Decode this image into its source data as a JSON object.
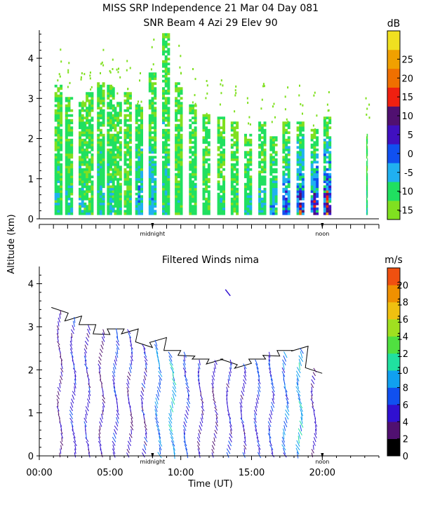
{
  "title_line1": "MISS SRP Independence  21 Mar 04 Day 081",
  "title_line2": "SNR Beam 4 Azi  29 Elev 90",
  "shared_ylabel": "Altitude (km)",
  "chart_data": [
    {
      "type": "heatmap",
      "name": "snr",
      "title": "SNR Beam 4 Azi  29 Elev 90",
      "ylabel": "Altitude (km)",
      "xlim": [
        0,
        24
      ],
      "ylim": [
        0,
        4.7
      ],
      "y_ticks": [
        0,
        1,
        2,
        3,
        4
      ],
      "markers": [
        {
          "label": "midnight",
          "x": 8
        },
        {
          "label": "noon",
          "x": 20
        }
      ],
      "colorbar": {
        "unit": "dB",
        "ticks": [
          -15,
          -10,
          -5,
          0,
          5,
          10,
          15,
          20,
          25
        ],
        "min": -17.5,
        "max": 32.5,
        "colors": [
          "#80e020",
          "#20e060",
          "#20b0f0",
          "#1050f0",
          "#4010c0",
          "#501070",
          "#f02010",
          "#f07000",
          "#f0a000",
          "#f0e020"
        ]
      },
      "columns": [
        {
          "x": 1.35,
          "top": 3.3,
          "peak": -8
        },
        {
          "x": 2.1,
          "top": 3.0,
          "peak": -8
        },
        {
          "x": 3.05,
          "top": 2.9,
          "peak": -8
        },
        {
          "x": 3.55,
          "top": 3.1,
          "peak": -10
        },
        {
          "x": 4.35,
          "top": 3.4,
          "peak": -8
        },
        {
          "x": 5.05,
          "top": 3.3,
          "peak": -8
        },
        {
          "x": 5.55,
          "top": 2.9,
          "peak": -10
        },
        {
          "x": 6.25,
          "top": 3.1,
          "peak": -10
        },
        {
          "x": 7.05,
          "top": 2.8,
          "peak": -5
        },
        {
          "x": 8.0,
          "top": 3.6,
          "peak": -5
        },
        {
          "x": 8.95,
          "top": 4.6,
          "peak": -8
        },
        {
          "x": 9.85,
          "top": 3.4,
          "peak": -10
        },
        {
          "x": 10.85,
          "top": 2.8,
          "peak": -10
        },
        {
          "x": 11.8,
          "top": 2.6,
          "peak": -10
        },
        {
          "x": 12.85,
          "top": 2.5,
          "peak": -10
        },
        {
          "x": 13.8,
          "top": 2.4,
          "peak": -10
        },
        {
          "x": 14.75,
          "top": 2.1,
          "peak": -8
        },
        {
          "x": 15.75,
          "top": 2.4,
          "peak": -8
        },
        {
          "x": 16.55,
          "top": 2.0,
          "peak": -5
        },
        {
          "x": 17.45,
          "top": 2.4,
          "peak": 0
        },
        {
          "x": 18.45,
          "top": 2.4,
          "peak": 5
        },
        {
          "x": 19.45,
          "top": 2.2,
          "peak": 5
        },
        {
          "x": 20.35,
          "top": 2.5,
          "peak": 8
        },
        {
          "x": 23.15,
          "top": 2.1,
          "peak": -8
        }
      ]
    },
    {
      "type": "quiver",
      "name": "winds",
      "title": "Filtered Winds nima",
      "xlabel": "Time (UT)",
      "ylabel": "Altitude (km)",
      "xlim": [
        0,
        24
      ],
      "ylim": [
        0,
        4.4
      ],
      "x_ticks": [
        0,
        5,
        10,
        15,
        20
      ],
      "x_tick_labels": [
        "00:00",
        "05:00",
        "10:00",
        "15:00",
        "20:00"
      ],
      "y_ticks": [
        0,
        1,
        2,
        3,
        4
      ],
      "markers": [
        {
          "label": "midnight",
          "x": 8
        },
        {
          "label": "noon",
          "x": 20
        }
      ],
      "colorbar": {
        "unit": "m/s",
        "ticks": [
          0,
          2,
          4,
          6,
          8,
          10,
          12,
          14,
          16,
          18,
          20
        ],
        "min": 0,
        "max": 22,
        "colors": [
          "#000000",
          "#501070",
          "#3010d0",
          "#1050f0",
          "#10a0f0",
          "#20e0a0",
          "#50e040",
          "#a0e020",
          "#f0c010",
          "#f09000",
          "#f05010"
        ]
      },
      "columns": [
        {
          "x": 1.45,
          "top": 3.4,
          "speed": 4
        },
        {
          "x": 2.4,
          "top": 3.2,
          "speed": 5
        },
        {
          "x": 3.4,
          "top": 3.0,
          "speed": 5
        },
        {
          "x": 4.4,
          "top": 2.9,
          "speed": 4
        },
        {
          "x": 5.4,
          "top": 2.9,
          "speed": 6
        },
        {
          "x": 6.4,
          "top": 2.9,
          "speed": 5
        },
        {
          "x": 7.4,
          "top": 2.6,
          "speed": 5
        },
        {
          "x": 8.4,
          "top": 2.7,
          "speed": 8
        },
        {
          "x": 9.4,
          "top": 2.4,
          "speed": 9
        },
        {
          "x": 10.4,
          "top": 2.4,
          "speed": 6
        },
        {
          "x": 11.4,
          "top": 2.2,
          "speed": 5
        },
        {
          "x": 12.4,
          "top": 2.2,
          "speed": 4
        },
        {
          "x": 13.4,
          "top": 2.2,
          "speed": 5
        },
        {
          "x": 14.4,
          "top": 2.1,
          "speed": 5
        },
        {
          "x": 15.4,
          "top": 2.2,
          "speed": 6
        },
        {
          "x": 16.4,
          "top": 2.4,
          "speed": 6
        },
        {
          "x": 17.4,
          "top": 2.4,
          "speed": 7
        },
        {
          "x": 18.4,
          "top": 2.5,
          "speed": 9
        },
        {
          "x": 19.4,
          "top": 2.0,
          "speed": 4
        }
      ],
      "isolated_vector": {
        "x": 13.3,
        "y": 3.8,
        "speed": 4
      }
    }
  ]
}
